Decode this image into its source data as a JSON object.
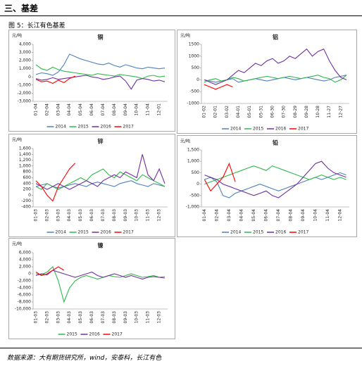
{
  "header": {
    "title": "三、基差",
    "figure": "图 5：长江有色基差"
  },
  "footer": {
    "source": "数据来源：大有期货研究所，wind，安泰科，长江有色"
  },
  "chart_data": [
    {
      "type": "line",
      "title": "铜",
      "y_label": "元/吨",
      "categories": [
        "01-04",
        null,
        "02-04",
        null,
        "03-04",
        null,
        "04-04",
        null,
        "05-04",
        null,
        "06-04",
        null,
        "07-04",
        null,
        "08-04",
        null,
        "09-04",
        null,
        "10-04",
        null,
        "11-04",
        null,
        "12-01",
        null
      ],
      "ylim": [
        -3000,
        4000
      ],
      "yticks": [
        {
          "value": -3000,
          "label": "-3,000"
        },
        {
          "value": -2000,
          "label": "-2,000"
        },
        {
          "value": -1000,
          "label": "-1,000"
        },
        0,
        {
          "value": 1000,
          "label": "1,000"
        },
        {
          "value": 2000,
          "label": "2,000"
        },
        {
          "value": 3000,
          "label": "3,000"
        },
        {
          "value": 4000,
          "label": "4,000"
        }
      ],
      "series": [
        {
          "name": "2014",
          "color": "#4f81bd",
          "values": [
            300,
            500,
            400,
            200,
            600,
            1500,
            2800,
            2500,
            2200,
            2000,
            1800,
            1600,
            1500,
            1700,
            1400,
            1200,
            1500,
            1300,
            1100,
            1000,
            1200,
            1100,
            1000,
            1100
          ]
        },
        {
          "name": "2015",
          "color": "#2fb84a",
          "values": [
            1500,
            1000,
            800,
            1200,
            900,
            700,
            600,
            500,
            400,
            300,
            200,
            400,
            300,
            200,
            100,
            300,
            200,
            100,
            0,
            -200,
            100,
            200,
            0,
            100
          ]
        },
        {
          "name": "2016",
          "color": "#7030a0",
          "values": [
            -200,
            -400,
            -300,
            -100,
            -300,
            -200,
            -100,
            0,
            100,
            200,
            0,
            -100,
            -300,
            -200,
            0,
            100,
            -500,
            -1500,
            -400,
            -200,
            -300,
            -500,
            -400,
            -600
          ]
        },
        {
          "name": "2017",
          "color": "#ff0000",
          "values": [
            -300,
            -600,
            -500,
            -800,
            -400,
            -700,
            -200,
            100,
            null,
            null,
            null,
            null,
            null,
            null,
            null,
            null,
            null,
            null,
            null,
            null,
            null,
            null,
            null,
            null
          ]
        }
      ]
    },
    {
      "type": "line",
      "title": "铝",
      "y_label": "元/吨",
      "categories": [
        "01-02",
        null,
        "02-01",
        null,
        "03-02",
        null,
        "04-01",
        null,
        "05-01",
        null,
        "05-31",
        null,
        "06-30",
        null,
        "07-30",
        null,
        "08-29",
        null,
        "09-28",
        null,
        "10-28",
        null,
        "11-27",
        null,
        "12-27",
        null
      ],
      "ylim": [
        -1000,
        1500
      ],
      "yticks": [
        -1000,
        -500,
        0,
        500,
        1000,
        1500
      ],
      "series": [
        {
          "name": "2014",
          "color": "#4f81bd",
          "values": [
            0,
            -50,
            -100,
            -50,
            0,
            50,
            -100,
            -50,
            0,
            50,
            0,
            -50,
            0,
            50,
            100,
            50,
            0,
            50,
            100,
            50,
            0,
            -50,
            0,
            100,
            150,
            200
          ]
        },
        {
          "name": "2015",
          "color": "#2fb84a",
          "values": [
            -100,
            0,
            50,
            -50,
            0,
            100,
            50,
            -50,
            0,
            50,
            100,
            150,
            100,
            50,
            100,
            150,
            100,
            50,
            100,
            150,
            200,
            100,
            50,
            -100,
            0,
            200
          ]
        },
        {
          "name": "2016",
          "color": "#7030a0",
          "values": [
            0,
            -100,
            -200,
            -100,
            0,
            200,
            400,
            300,
            500,
            700,
            600,
            800,
            900,
            700,
            800,
            1000,
            900,
            1100,
            1300,
            1000,
            1200,
            1300,
            800,
            400,
            100,
            0
          ]
        },
        {
          "name": "2017",
          "color": "#ff0000",
          "values": [
            -200,
            -300,
            -400,
            -300,
            -200,
            -300,
            null,
            null,
            null,
            null,
            null,
            null,
            null,
            null,
            null,
            null,
            null,
            null,
            null,
            null,
            null,
            null,
            null,
            null,
            null,
            null
          ]
        }
      ]
    },
    {
      "type": "line",
      "title": "锌",
      "y_label": "元/吨",
      "categories": [
        "01-03",
        null,
        "02-03",
        null,
        "03-03",
        null,
        "04-03",
        null,
        "05-03",
        null,
        "06-03",
        null,
        "07-03",
        null,
        "08-03",
        null,
        "09-03",
        null,
        "10-03",
        null,
        "11-03",
        null,
        "12-03",
        null
      ],
      "ylim": [
        -400,
        1600
      ],
      "yticks": [
        -400,
        -200,
        0,
        200,
        400,
        600,
        800,
        {
          "value": 1000,
          "label": "1,000"
        },
        {
          "value": 1200,
          "label": "1,200"
        },
        {
          "value": 1400,
          "label": "1,400"
        },
        {
          "value": 1600,
          "label": "1,600"
        }
      ],
      "series": [
        {
          "name": "2014",
          "color": "#4f81bd",
          "values": [
            300,
            350,
            400,
            300,
            250,
            300,
            350,
            400,
            350,
            300,
            400,
            450,
            400,
            350,
            300,
            400,
            450,
            500,
            400,
            350,
            300,
            400,
            350,
            300
          ]
        },
        {
          "name": "2015",
          "color": "#2fb84a",
          "values": [
            300,
            200,
            400,
            300,
            200,
            300,
            400,
            500,
            600,
            500,
            700,
            800,
            900,
            700,
            600,
            800,
            700,
            600,
            500,
            700,
            600,
            500,
            400,
            300
          ]
        },
        {
          "name": "2016",
          "color": "#7030a0",
          "values": [
            400,
            300,
            200,
            300,
            400,
            300,
            200,
            300,
            400,
            500,
            400,
            300,
            500,
            600,
            700,
            600,
            800,
            700,
            600,
            1400,
            700,
            500,
            900,
            400
          ]
        },
        {
          "name": "2017",
          "color": "#ff0000",
          "values": [
            500,
            300,
            0,
            -200,
            300,
            600,
            900,
            1100,
            null,
            null,
            null,
            null,
            null,
            null,
            null,
            null,
            null,
            null,
            null,
            null,
            null,
            null,
            null,
            null
          ]
        }
      ]
    },
    {
      "type": "line",
      "title": "铅",
      "y_label": "元/吨",
      "categories": [
        "01-04",
        null,
        "02-04",
        null,
        "03-04",
        null,
        "04-04",
        null,
        "05-04",
        null,
        "06-04",
        null,
        "07-04",
        null,
        "08-04",
        null,
        "09-04",
        null,
        "10-04",
        null,
        "11-04",
        null,
        "12-04",
        null
      ],
      "ylim": [
        -1000,
        1500
      ],
      "yticks": [
        {
          "value": -1000,
          "label": "-1,000"
        },
        -500,
        0,
        500,
        {
          "value": 1000,
          "label": "1,000"
        },
        {
          "value": 1500,
          "label": "1,500"
        }
      ],
      "series": [
        {
          "name": "2014",
          "color": "#4f81bd",
          "values": [
            200,
            300,
            100,
            -500,
            -600,
            -400,
            -300,
            -200,
            -100,
            0,
            -100,
            -200,
            -300,
            -200,
            -100,
            0,
            100,
            200,
            300,
            200,
            300,
            400,
            500,
            400
          ]
        },
        {
          "name": "2015",
          "color": "#2fb84a",
          "values": [
            0,
            100,
            200,
            300,
            400,
            500,
            600,
            700,
            800,
            700,
            600,
            800,
            700,
            600,
            500,
            400,
            300,
            200,
            300,
            400,
            300,
            200,
            300,
            200
          ]
        },
        {
          "name": "2016",
          "color": "#7030a0",
          "values": [
            400,
            300,
            200,
            0,
            -100,
            -200,
            -300,
            -400,
            -500,
            -400,
            -300,
            -500,
            -600,
            -400,
            -200,
            0,
            300,
            600,
            900,
            1000,
            700,
            500,
            400,
            300
          ]
        },
        {
          "name": "2017",
          "color": "#ff0000",
          "values": [
            200,
            -300,
            0,
            300,
            900,
            100,
            null,
            null,
            null,
            null,
            null,
            null,
            null,
            null,
            null,
            null,
            null,
            null,
            null,
            null,
            null,
            null,
            null,
            null
          ]
        }
      ]
    },
    {
      "type": "line",
      "title": "镍",
      "y_label": "元/吨",
      "categories": [
        "01-03",
        null,
        "02-03",
        null,
        "03-03",
        null,
        "04-03",
        null,
        "05-03",
        null,
        "06-03",
        null,
        "07-03",
        null,
        "08-03",
        null,
        "09-03",
        null,
        "10-03",
        null,
        "11-03",
        null,
        "12-03",
        null
      ],
      "ylim": [
        -10000,
        6000
      ],
      "yticks": [
        {
          "value": -10000,
          "label": "-10,000"
        },
        {
          "value": -8000,
          "label": "-8,000"
        },
        {
          "value": -6000,
          "label": "-6,000"
        },
        {
          "value": -4000,
          "label": "-4,000"
        },
        {
          "value": -2000,
          "label": "-2,000"
        },
        0,
        {
          "value": 2000,
          "label": "2,000"
        },
        {
          "value": 4000,
          "label": "4,000"
        },
        {
          "value": 6000,
          "label": "6,000"
        }
      ],
      "series": [
        {
          "name": "2015",
          "color": "#2fb84a",
          "values": [
            0,
            -200,
            500,
            2000,
            -2000,
            -8000,
            -4000,
            -2000,
            -1000,
            -500,
            -1000,
            -1500,
            -1000,
            -500,
            -800,
            -1000,
            -500,
            0,
            -500,
            -1000,
            -800,
            -500,
            -1000,
            -800
          ]
        },
        {
          "name": "2016",
          "color": "#7030a0",
          "values": [
            -500,
            0,
            -300,
            1000,
            500,
            0,
            -500,
            -1000,
            -500,
            0,
            500,
            -500,
            -1000,
            -500,
            0,
            -500,
            -1000,
            -500,
            -1000,
            -1500,
            -1000,
            -800,
            -1000,
            -1200
          ]
        },
        {
          "name": "2017",
          "color": "#ff0000",
          "values": [
            500,
            -500,
            0,
            1000,
            2000,
            1000,
            null,
            null,
            null,
            null,
            null,
            null,
            null,
            null,
            null,
            null,
            null,
            null,
            null,
            null,
            null,
            null,
            null,
            null
          ]
        }
      ]
    }
  ]
}
